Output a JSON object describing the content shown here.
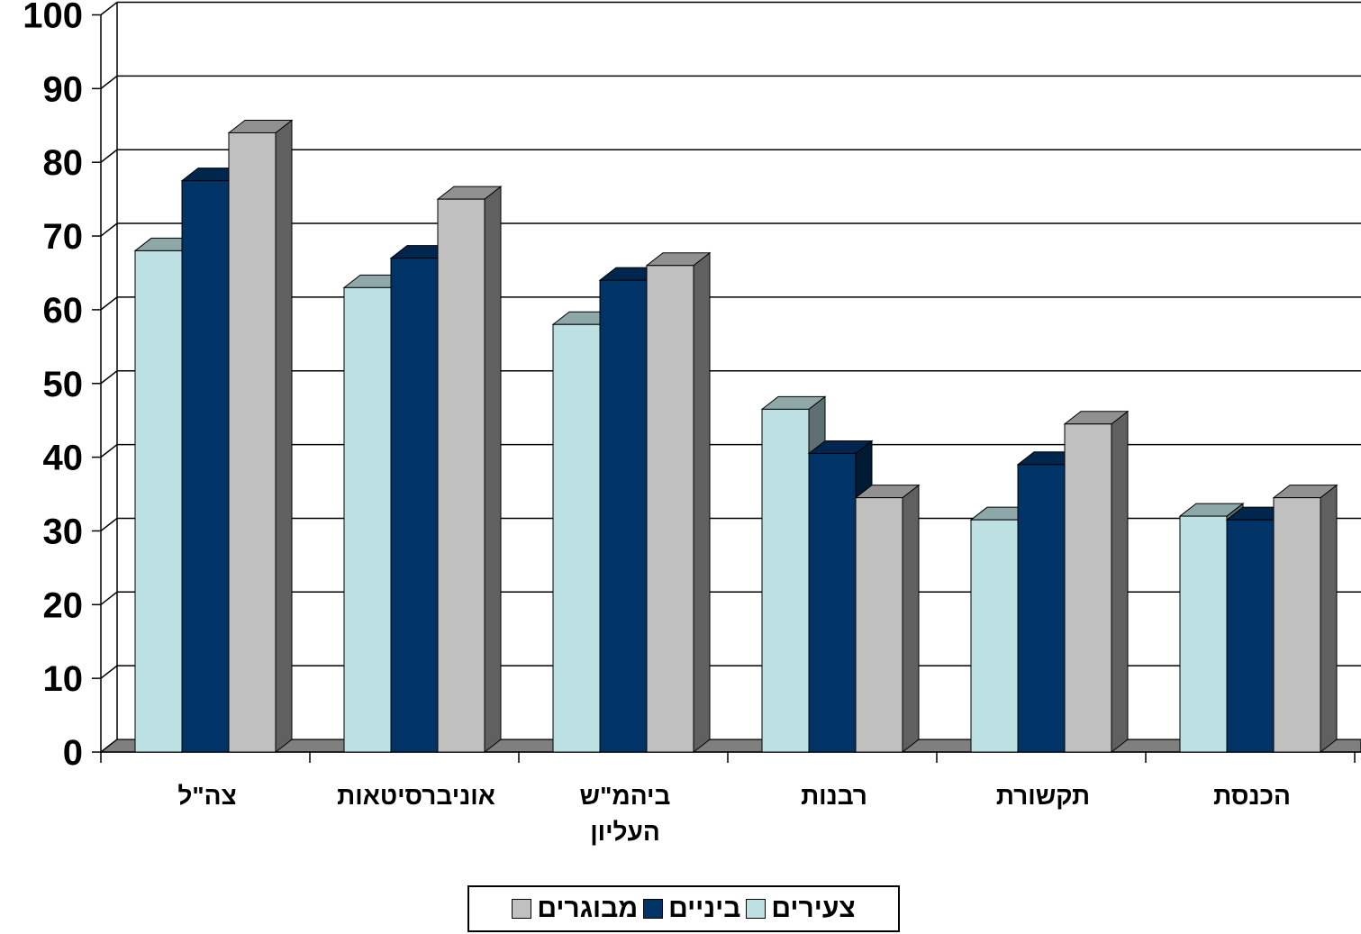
{
  "chart_data": {
    "type": "bar",
    "categories": [
      "צה\"ל",
      "אוניברסיטאות",
      "ביהמ\"ש העליון",
      "רבנות",
      "תקשורת",
      "הכנסת"
    ],
    "series": [
      {
        "name": "צעירים",
        "values": [
          68,
          63,
          58,
          46.5,
          31.5,
          32
        ],
        "color": "#bde0e3"
      },
      {
        "name": "ביניים",
        "values": [
          77.5,
          67,
          64,
          40.5,
          39,
          31.5
        ],
        "color": "#003366"
      },
      {
        "name": "מבוגרים",
        "values": [
          84,
          75,
          66,
          34.5,
          44.5,
          34.5
        ],
        "color": "#c0c0c0"
      }
    ],
    "yticks": [
      "0",
      "10",
      "20",
      "30",
      "40",
      "50",
      "60",
      "70",
      "80",
      "90",
      "100"
    ],
    "ylim": [
      0,
      100
    ],
    "grid": true,
    "legend_position": "bottom",
    "projection": "3d-column"
  }
}
